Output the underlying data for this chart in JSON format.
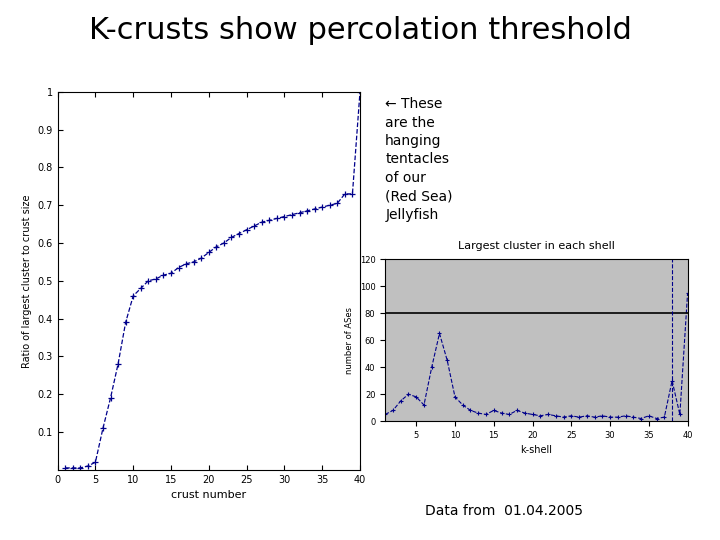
{
  "title": "K-crusts show percolation threshold",
  "title_fontsize": 22,
  "background_color": "#ffffff",
  "annotation_text": "← These\nare the\nhanging\ntentacles\nof our\n(Red Sea)\nJellyfish",
  "annotation_fontsize": 10,
  "footer_text": "Data from  01.04.2005",
  "footer_fontsize": 10,
  "left_plot": {
    "xlabel": "crust number",
    "ylabel": "Ratio of largest cluster to crust size",
    "xlabel_fontsize": 8,
    "ylabel_fontsize": 7,
    "xlim": [
      0,
      40
    ],
    "ylim": [
      0,
      1
    ],
    "xticks": [
      0,
      5,
      10,
      15,
      20,
      25,
      30,
      35,
      40
    ],
    "yticks": [
      0.1,
      0.2,
      0.3,
      0.4,
      0.5,
      0.6,
      0.7,
      0.8,
      0.9,
      1.0
    ],
    "yticklabels": [
      "0.1",
      "0.2",
      "0.3",
      "0.4",
      "0.5",
      "0.6",
      "0.7",
      "0.8",
      "0.9",
      "1"
    ],
    "color": "#00008B",
    "x": [
      1,
      2,
      3,
      4,
      5,
      6,
      7,
      8,
      9,
      10,
      11,
      12,
      13,
      14,
      15,
      16,
      17,
      18,
      19,
      20,
      21,
      22,
      23,
      24,
      25,
      26,
      27,
      28,
      29,
      30,
      31,
      32,
      33,
      34,
      35,
      36,
      37,
      38,
      39,
      40
    ],
    "y": [
      0.005,
      0.005,
      0.005,
      0.01,
      0.02,
      0.11,
      0.19,
      0.28,
      0.39,
      0.46,
      0.48,
      0.5,
      0.505,
      0.515,
      0.52,
      0.535,
      0.545,
      0.55,
      0.56,
      0.575,
      0.59,
      0.6,
      0.615,
      0.625,
      0.635,
      0.645,
      0.655,
      0.66,
      0.665,
      0.67,
      0.675,
      0.68,
      0.685,
      0.69,
      0.695,
      0.7,
      0.705,
      0.73,
      0.73,
      1.0
    ]
  },
  "right_plot": {
    "title": "Largest cluster in each shell",
    "title_fontsize": 8,
    "xlabel": "k-shell",
    "ylabel": "number of ASes",
    "xlabel_fontsize": 7,
    "ylabel_fontsize": 6,
    "xlim": [
      1,
      40
    ],
    "ylim": [
      0,
      120
    ],
    "yticks": [
      0,
      20,
      40,
      60,
      80,
      100,
      120
    ],
    "yticklabels": [
      "0",
      "20",
      "40",
      "60",
      "80",
      "100",
      "120"
    ],
    "color": "#00008B",
    "background_color": "#c0c0c0",
    "hline_y": 80,
    "vline_x": 38,
    "x": [
      1,
      2,
      3,
      4,
      5,
      6,
      7,
      8,
      9,
      10,
      11,
      12,
      13,
      14,
      15,
      16,
      17,
      18,
      19,
      20,
      21,
      22,
      23,
      24,
      25,
      26,
      27,
      28,
      29,
      30,
      31,
      32,
      33,
      34,
      35,
      36,
      37,
      38,
      39,
      40
    ],
    "y": [
      5,
      8,
      15,
      20,
      18,
      12,
      40,
      65,
      45,
      18,
      12,
      8,
      6,
      5,
      8,
      6,
      5,
      8,
      6,
      5,
      4,
      5,
      4,
      3,
      4,
      3,
      4,
      3,
      4,
      3,
      3,
      4,
      3,
      2,
      4,
      2,
      3,
      30,
      5,
      95
    ]
  }
}
